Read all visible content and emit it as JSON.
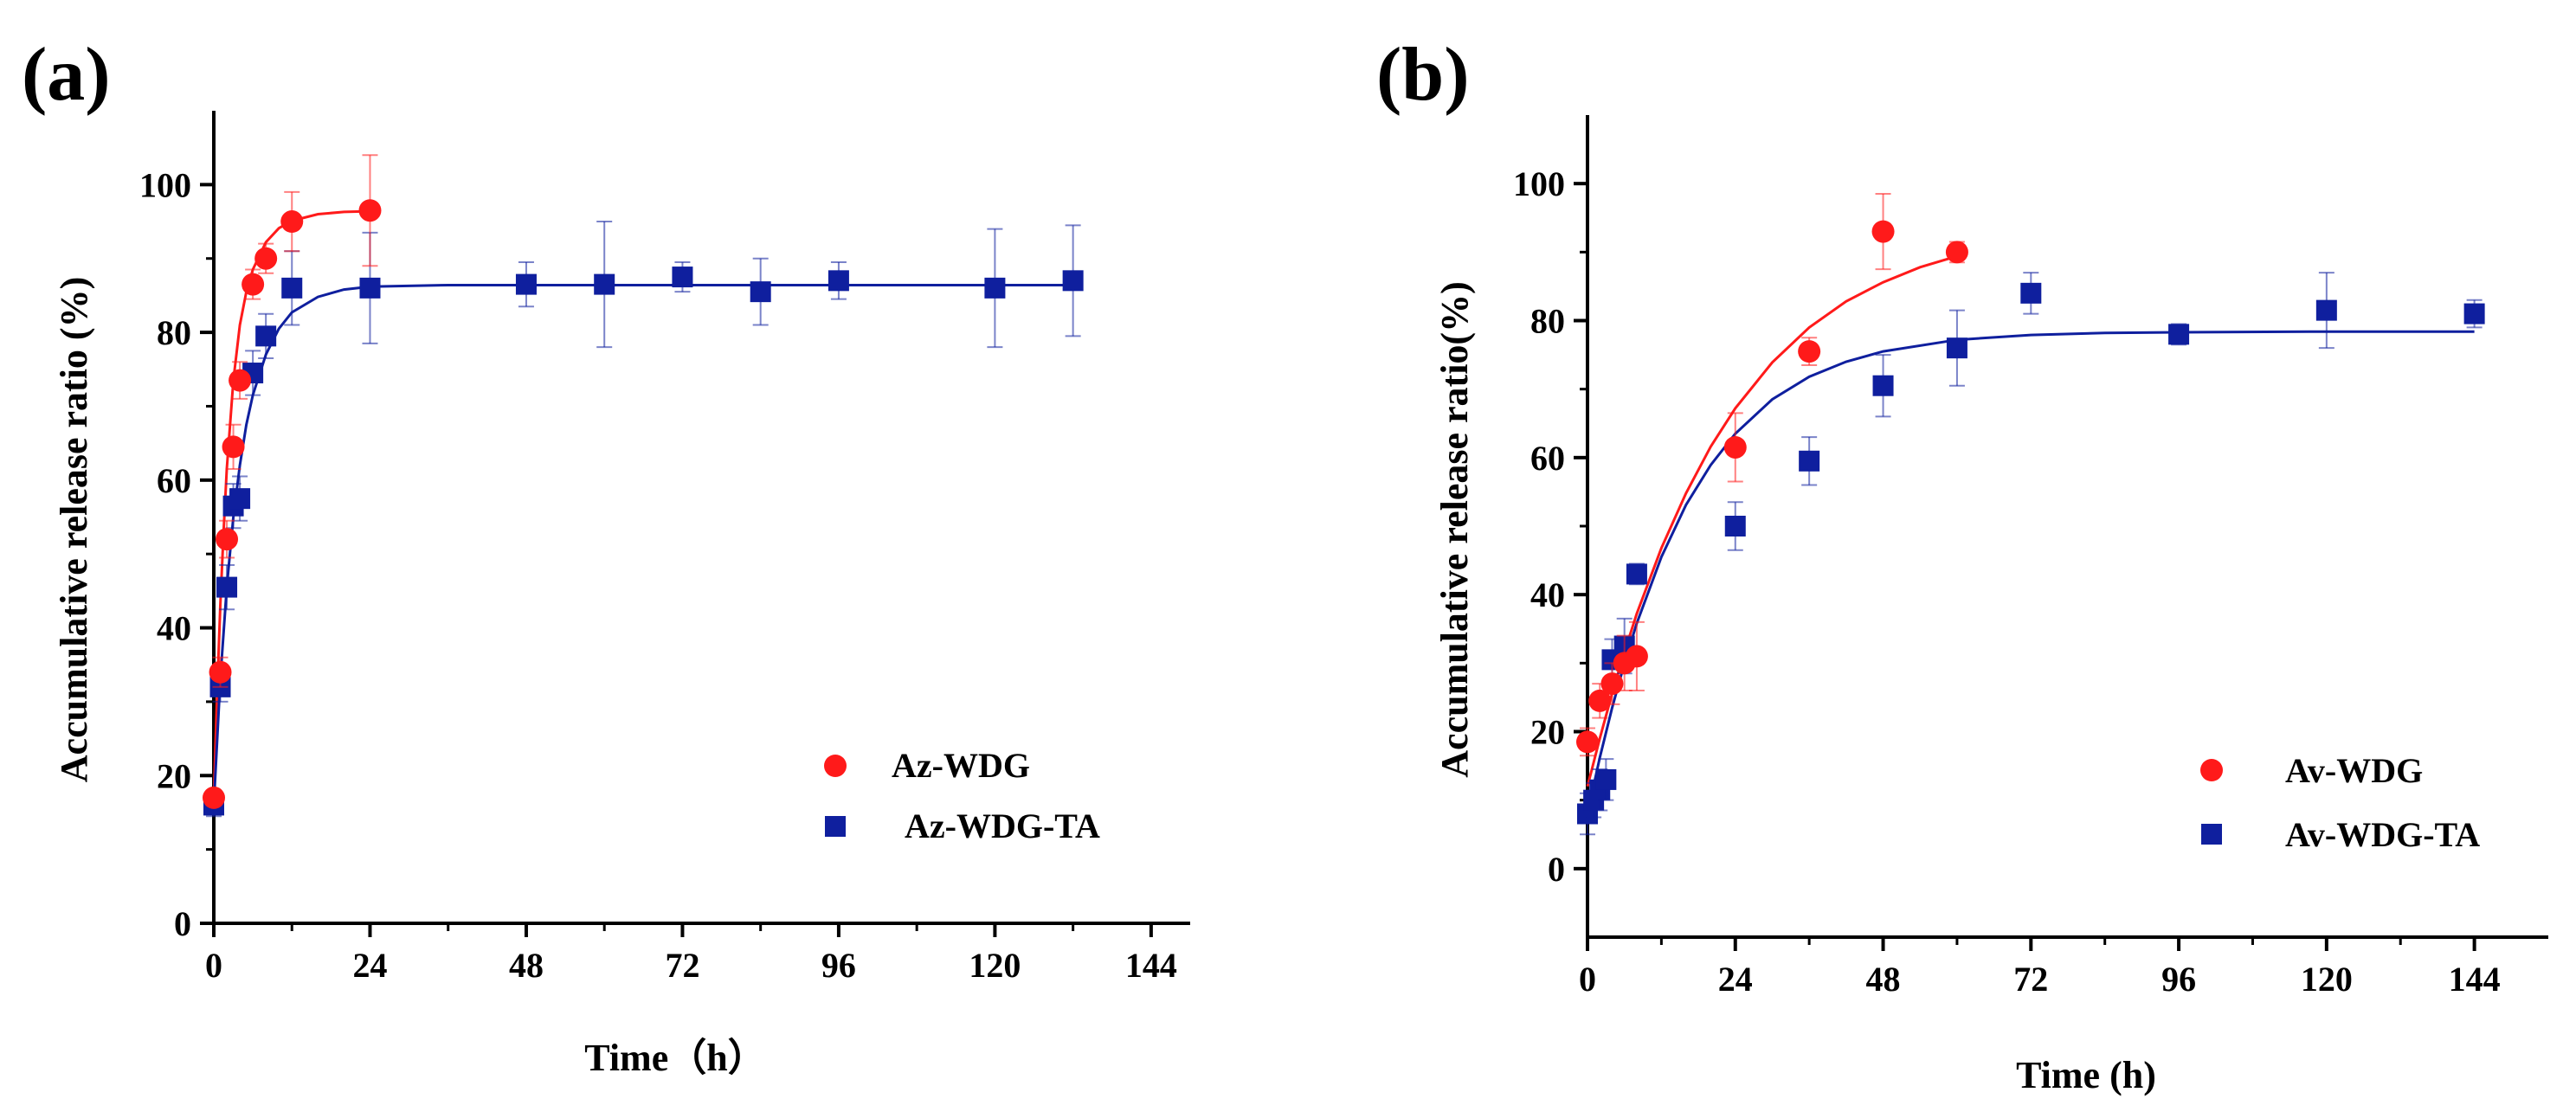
{
  "colors": {
    "red": "#ff1a1a",
    "blue": "#0f1f9e",
    "axis": "#000000"
  },
  "chart_data": [
    {
      "type": "scatter",
      "panel_label": "(a)",
      "xlabel": "Time（h）",
      "ylabel": "Accumulative release ratio (%)",
      "xlim": [
        0,
        150
      ],
      "ylim": [
        0,
        110
      ],
      "xticks": [
        0,
        24,
        48,
        72,
        96,
        120,
        144
      ],
      "yticks": [
        0,
        20,
        40,
        60,
        80,
        100
      ],
      "legend_position": "bottom-right",
      "series": [
        {
          "name": "Az-WDG",
          "marker": "circle",
          "color": "#ff1a1a",
          "x": [
            0,
            1,
            2,
            3,
            4,
            6,
            8,
            12,
            24
          ],
          "y": [
            17,
            34,
            52,
            64.5,
            73.5,
            86.5,
            90,
            95,
            96.5
          ],
          "err": [
            1,
            2,
            2.5,
            3,
            2.5,
            2,
            2,
            4,
            7.5
          ],
          "fit_x": [
            0,
            0.5,
            1,
            1.5,
            2,
            3,
            4,
            5,
            6,
            8,
            10,
            12,
            16,
            20,
            24
          ],
          "fit_y": [
            17,
            31,
            43,
            53,
            61.5,
            73.5,
            81,
            85.5,
            88.5,
            92.2,
            94.1,
            95.1,
            96,
            96.3,
            96.4
          ]
        },
        {
          "name": "Az-WDG-TA",
          "marker": "square",
          "color": "#0f1f9e",
          "x": [
            0,
            1,
            2,
            3,
            4,
            6,
            8,
            12,
            24,
            48,
            60,
            72,
            84,
            96,
            120,
            132
          ],
          "y": [
            16,
            32,
            45.5,
            56.5,
            57.5,
            74.5,
            79.5,
            86,
            86,
            86.5,
            86.5,
            87.5,
            85.5,
            87,
            86,
            87
          ],
          "err": [
            1.5,
            2,
            3,
            3,
            3,
            3,
            3,
            5,
            7.5,
            3,
            8.5,
            2,
            4.5,
            2.5,
            8,
            7.5
          ],
          "fit_x": [
            0,
            1,
            2,
            3,
            4,
            5,
            6,
            8,
            10,
            12,
            16,
            20,
            24,
            36,
            48,
            72,
            96,
            120,
            132
          ],
          "fit_y": [
            16,
            33,
            45.5,
            55,
            62,
            67.5,
            71.5,
            77,
            80.5,
            82.7,
            84.8,
            85.8,
            86.2,
            86.4,
            86.4,
            86.4,
            86.4,
            86.4,
            86.4
          ]
        }
      ]
    },
    {
      "type": "scatter",
      "panel_label": "(b)",
      "xlabel": "Time (h)",
      "ylabel": "Accumulative release ratio(%)",
      "xlim": [
        0,
        156
      ],
      "ylim": [
        -10,
        110
      ],
      "xticks": [
        0,
        24,
        48,
        72,
        96,
        120,
        144
      ],
      "yticks": [
        0,
        20,
        40,
        60,
        80,
        100
      ],
      "legend_position": "bottom-right",
      "series": [
        {
          "name": "Av-WDG",
          "marker": "circle",
          "color": "#ff1a1a",
          "x": [
            0,
            2,
            4,
            6,
            8,
            24,
            36,
            48,
            60
          ],
          "y": [
            18.5,
            24.5,
            27,
            30,
            31,
            61.5,
            75.5,
            93,
            90
          ],
          "err": [
            2,
            2.5,
            3,
            4,
            5,
            5,
            2,
            5.5,
            1.5
          ],
          "fit_x": [
            0,
            2,
            4,
            6,
            8,
            12,
            16,
            20,
            24,
            30,
            36,
            42,
            48,
            54,
            60
          ],
          "fit_y": [
            12,
            19,
            25.6,
            31.6,
            37.2,
            46.8,
            54.8,
            61.6,
            67.2,
            73.9,
            79,
            82.8,
            85.6,
            87.8,
            89.4
          ]
        },
        {
          "name": "Av-WDG-TA",
          "marker": "square",
          "color": "#0f1f9e",
          "x": [
            0,
            1,
            2,
            3,
            4,
            6,
            8,
            24,
            36,
            48,
            60,
            72,
            96,
            120,
            144
          ],
          "y": [
            8,
            10,
            11.5,
            13,
            30.5,
            32.5,
            43,
            50,
            59.5,
            70.5,
            76,
            84,
            78,
            81.5,
            81
          ],
          "err": [
            3,
            2.5,
            3,
            3,
            3,
            4,
            1.5,
            3.5,
            3.5,
            4.5,
            5.5,
            3,
            1.5,
            5.5,
            2
          ],
          "fit_x": [
            0,
            2,
            4,
            6,
            8,
            12,
            16,
            20,
            24,
            30,
            36,
            42,
            48,
            60,
            72,
            84,
            96,
            120,
            144
          ],
          "fit_y": [
            8,
            16.2,
            23.5,
            30,
            35.8,
            45.5,
            53.1,
            58.9,
            63.5,
            68.5,
            71.8,
            74,
            75.5,
            77.2,
            77.9,
            78.2,
            78.3,
            78.4,
            78.4
          ]
        }
      ]
    }
  ]
}
